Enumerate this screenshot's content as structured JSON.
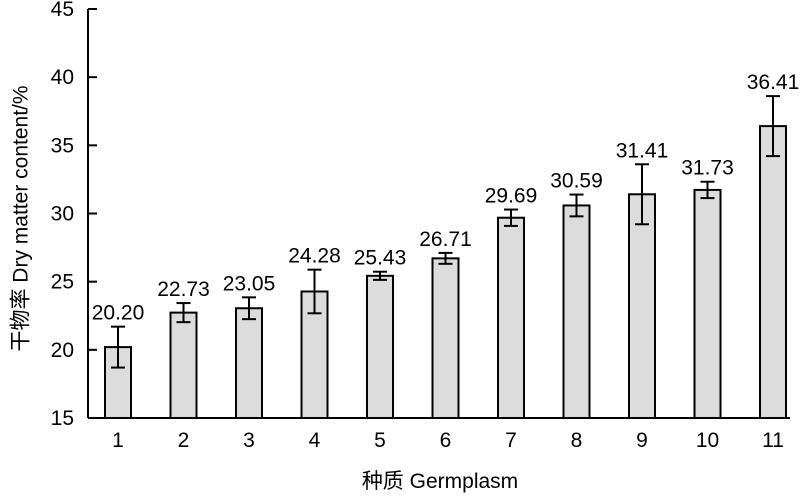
{
  "chart_data": {
    "type": "bar",
    "title": "",
    "xlabel": "种质 Germplasm",
    "ylabel": "干物率 Dry matter content/%",
    "categories": [
      "1",
      "2",
      "3",
      "4",
      "5",
      "6",
      "7",
      "8",
      "9",
      "10",
      "11"
    ],
    "values": [
      20.2,
      22.73,
      23.05,
      24.28,
      25.43,
      26.71,
      29.69,
      30.59,
      31.41,
      31.73,
      36.41
    ],
    "value_labels": [
      "20.20",
      "22.73",
      "23.05",
      "24.28",
      "25.43",
      "26.71",
      "29.69",
      "30.59",
      "31.41",
      "31.73",
      "36.41"
    ],
    "error": [
      1.5,
      0.7,
      0.8,
      1.6,
      0.3,
      0.4,
      0.6,
      0.8,
      2.2,
      0.6,
      2.2
    ],
    "ylim": [
      15,
      45
    ],
    "yticks": [
      15,
      20,
      25,
      30,
      35,
      40,
      45
    ],
    "grid": false,
    "colors": {
      "bar_fill": "#dcdcdc",
      "bar_stroke": "#000000",
      "axis": "#000000"
    }
  }
}
